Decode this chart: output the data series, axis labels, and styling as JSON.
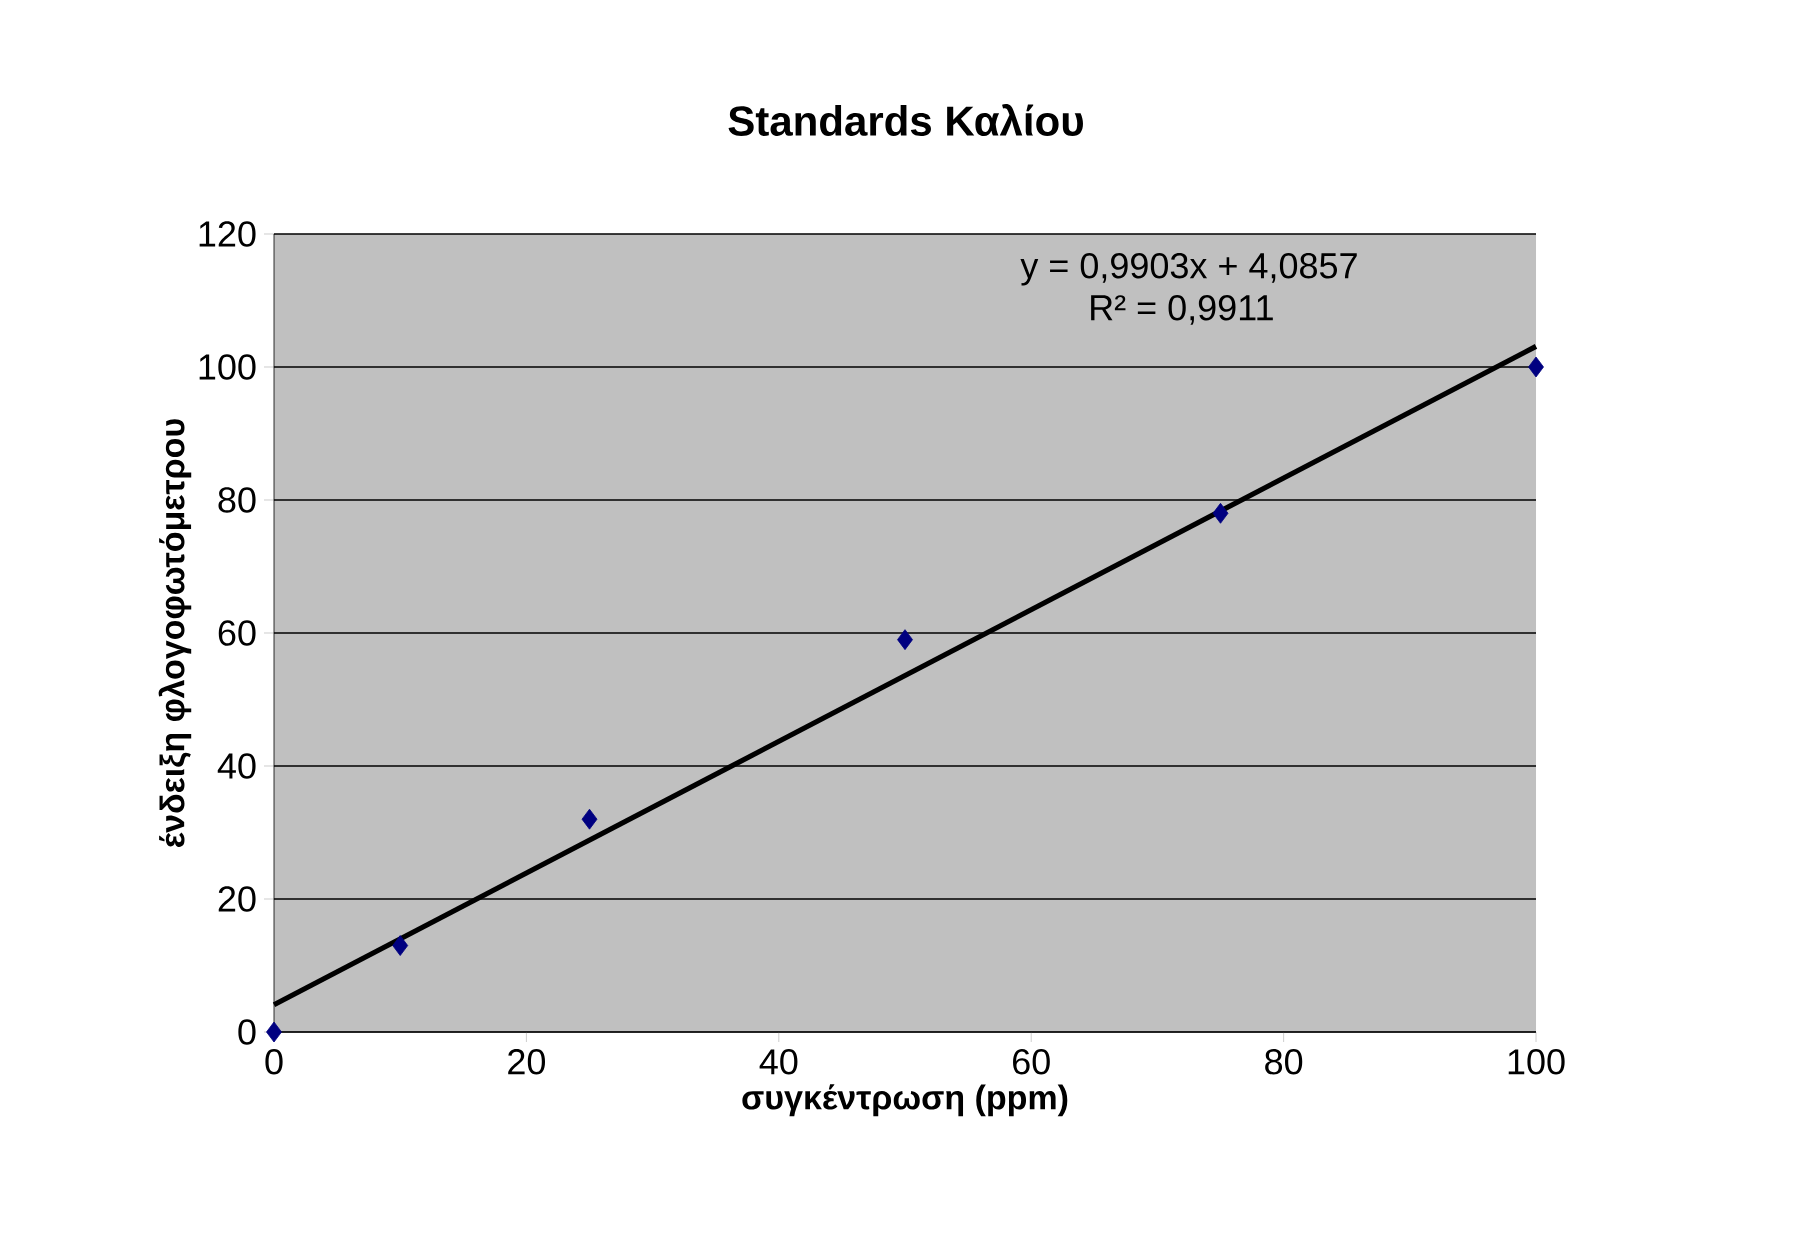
{
  "chart_data": {
    "type": "scatter",
    "title": "Standards Καλίου",
    "xlabel": "συγκέντρωση (ppm)",
    "ylabel": "ένδειξη φλογοφωτόμετρου",
    "x": [
      0,
      10,
      25,
      50,
      75,
      100
    ],
    "series": [
      {
        "color": "#000080",
        "marker": "diamond",
        "values": [
          0,
          13,
          32,
          59,
          78,
          100
        ]
      },
      {
        "type": "line",
        "color": "#000000",
        "marker": "none",
        "x": [
          0,
          100
        ],
        "values": [
          4.1,
          103.1
        ]
      }
    ],
    "xlim": [
      0,
      100
    ],
    "xticks": [
      0,
      20,
      40,
      60,
      80,
      100
    ],
    "ylim": [
      0,
      120
    ],
    "yticks": [
      0,
      20,
      40,
      60,
      80,
      100,
      120
    ],
    "grid": "y",
    "annotations": [
      {
        "text": "y = 0,9903x + 4,0857"
      },
      {
        "text": "R² = 0,9911"
      }
    ]
  }
}
